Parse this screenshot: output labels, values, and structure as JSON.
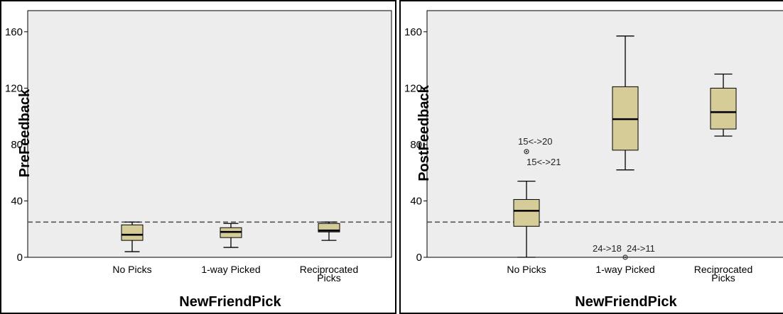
{
  "chart_data": [
    {
      "type": "box",
      "xlabel": "NewFriendPick",
      "ylabel": "PreFeedback",
      "ylim": [
        0,
        175
      ],
      "yticks": [
        "0",
        "40",
        "80",
        "120",
        "160"
      ],
      "grid": false,
      "categories": [
        [
          "No Picks"
        ],
        [
          "1-way Picked"
        ],
        [
          "Reciprocated",
          "Picks"
        ]
      ],
      "reference_line": 25,
      "boxes": [
        {
          "min": 4,
          "q1": 12,
          "median": 16,
          "q3": 23,
          "max": 25
        },
        {
          "min": 7,
          "q1": 14,
          "median": 18,
          "q3": 21,
          "max": 24
        },
        {
          "min": 12,
          "q1": 18,
          "median": 19,
          "q3": 24,
          "max": 25
        }
      ],
      "outliers": []
    },
    {
      "type": "box",
      "xlabel": "NewFriendPick",
      "ylabel": "PostFeedback",
      "ylim": [
        0,
        175
      ],
      "yticks": [
        "0",
        "40",
        "80",
        "120",
        "160"
      ],
      "grid": false,
      "categories": [
        [
          "No Picks"
        ],
        [
          "1-way Picked"
        ],
        [
          "Reciprocated",
          "Picks"
        ]
      ],
      "reference_line": 25,
      "boxes": [
        {
          "min": 0,
          "q1": 22,
          "median": 33,
          "q3": 41,
          "max": 54
        },
        {
          "min": 62,
          "q1": 76,
          "median": 98,
          "q3": 121,
          "max": 157
        },
        {
          "min": 86,
          "q1": 91,
          "median": 103,
          "q3": 120,
          "max": 130
        }
      ],
      "outliers": [
        {
          "category": 0,
          "value": 75,
          "labels": [
            "15<->20",
            "15<->21"
          ]
        },
        {
          "category": 1,
          "value": 0,
          "labels": [
            "24->18",
            "24->11"
          ]
        }
      ]
    }
  ],
  "colors": {
    "plot_bg": "#ededed",
    "box_fill": "#d6cc98",
    "box_stroke": "#000000",
    "ref_line": "#555555"
  }
}
